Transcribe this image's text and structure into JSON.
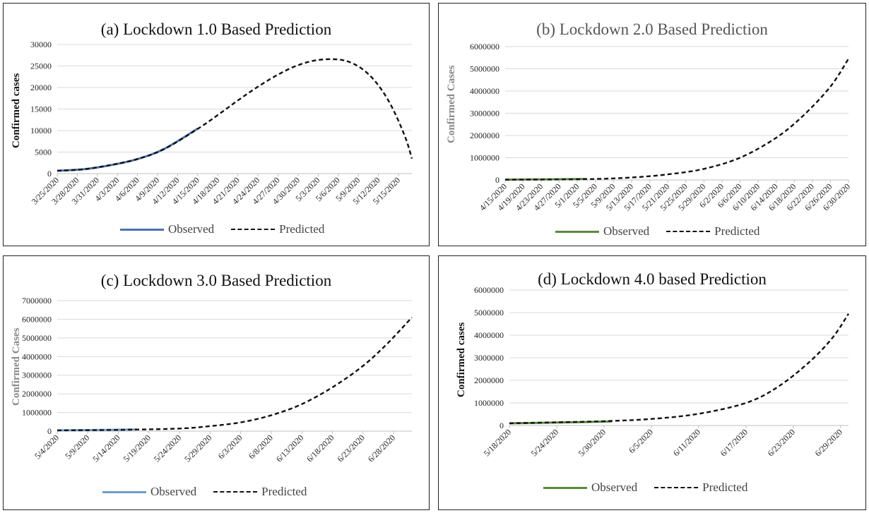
{
  "panels": [
    {
      "title": "(a) Lockdown 1.0 Based Prediction",
      "ylabel": "Confirmed cases",
      "ylabel_color": "#111111",
      "observed_color": "#4a72b0",
      "legend": {
        "observed": "Observed",
        "predicted": "Predicted"
      },
      "chart_data": {
        "type": "line",
        "ylim": [
          0,
          30000
        ],
        "yticks": [
          "0",
          "5000",
          "10000",
          "15000",
          "20000",
          "25000",
          "30000"
        ],
        "ytick_values": [
          0,
          5000,
          10000,
          15000,
          20000,
          25000,
          30000
        ],
        "grid": true,
        "x_count": 54,
        "xtick_labels": [
          "3/25/2020",
          "3/28/2020",
          "3/31/2020",
          "4/3/2020",
          "4/6/2020",
          "4/9/2020",
          "4/12/2020",
          "4/15/2020",
          "4/18/2020",
          "4/21/2020",
          "4/24/2020",
          "4/27/2020",
          "4/30/2020",
          "5/3/2020",
          "5/6/2020",
          "5/9/2020",
          "5/12/2020",
          "5/15/2020"
        ],
        "xtick_step": 3,
        "series": [
          {
            "name": "Observed",
            "style": "solid",
            "x": [
              0,
              4,
              8,
              12,
              16,
              21
            ],
            "y": [
              657,
              1024,
              1965,
              3374,
              5734,
              10453
            ]
          },
          {
            "name": "Predicted",
            "style": "dashed",
            "x": [
              0,
              4,
              8,
              12,
              16,
              21,
              24,
              27,
              30,
              33,
              36,
              39,
              42,
              44,
              46,
              48,
              50,
              52,
              53
            ],
            "y": [
              657,
              1000,
              2000,
              3400,
              5700,
              10400,
              13600,
              17000,
              20200,
              23000,
              25200,
              26400,
              26500,
              25700,
              23800,
              20500,
              15500,
              8500,
              3500
            ]
          }
        ]
      }
    },
    {
      "title": "(b) Lockdown 2.0 Based Prediction",
      "ylabel": "Confirmed Cases",
      "ylabel_color": "#888888",
      "observed_color": "#5a8a3a",
      "legend": {
        "observed": "Observed",
        "predicted": "Predicted"
      },
      "chart_data": {
        "type": "line",
        "ylim": [
          0,
          6000000
        ],
        "yticks": [
          "0",
          "1000000",
          "2000000",
          "3000000",
          "4000000",
          "5000000",
          "6000000"
        ],
        "ytick_values": [
          0,
          1000000,
          2000000,
          3000000,
          4000000,
          5000000,
          6000000
        ],
        "grid": true,
        "x_count": 77,
        "xtick_labels": [
          "4/15/2020",
          "4/19/2020",
          "4/23/2020",
          "4/27/2020",
          "5/1/2020",
          "5/5/2020",
          "5/9/2020",
          "5/13/2020",
          "5/17/2020",
          "5/21/2020",
          "5/25/2020",
          "5/29/2020",
          "6/2/2020",
          "6/6/2020",
          "6/10/2020",
          "6/14/2020",
          "6/18/2020",
          "6/22/2020",
          "6/26/2020",
          "6/30/2020"
        ],
        "xtick_step": 4,
        "series": [
          {
            "name": "Observed",
            "style": "solid",
            "x": [
              0,
              10,
              18
            ],
            "y": [
              12000,
              30000,
              46000
            ]
          },
          {
            "name": "Predicted",
            "style": "dashed",
            "x": [
              0,
              10,
              20,
              28,
              36,
              44,
              52,
              60,
              66,
              72,
              76
            ],
            "y": [
              12000,
              20000,
              45000,
              110000,
              250000,
              500000,
              1000000,
              1900000,
              2900000,
              4200000,
              5450000
            ]
          }
        ]
      }
    },
    {
      "title": "(c) Lockdown 3.0 Based Prediction",
      "ylabel": "Confirmed Cases",
      "ylabel_color": "#888888",
      "observed_color": "#6d9cc8",
      "legend": {
        "observed": "Observed",
        "predicted": "Predicted"
      },
      "chart_data": {
        "type": "line",
        "ylim": [
          0,
          7000000
        ],
        "yticks": [
          "0",
          "1000000",
          "2000000",
          "3000000",
          "4000000",
          "5000000",
          "6000000",
          "7000000"
        ],
        "ytick_values": [
          0,
          1000000,
          2000000,
          3000000,
          4000000,
          5000000,
          6000000,
          7000000
        ],
        "grid": true,
        "x_count": 59,
        "xtick_labels": [
          "5/4/2020",
          "5/9/2020",
          "5/14/2020",
          "5/19/2020",
          "5/24/2020",
          "5/29/2020",
          "6/3/2020",
          "6/8/2020",
          "6/13/2020",
          "6/18/2020",
          "6/23/2020",
          "6/28/2020"
        ],
        "xtick_step": 5,
        "series": [
          {
            "name": "Observed",
            "style": "solid",
            "x": [
              0,
              6,
              13
            ],
            "y": [
              42000,
              62000,
              90000
            ]
          },
          {
            "name": "Predicted",
            "style": "dashed",
            "x": [
              0,
              10,
              20,
              25,
              30,
              35,
              40,
              45,
              50,
              54,
              58
            ],
            "y": [
              42000,
              70000,
              140000,
              270000,
              470000,
              850000,
              1450000,
              2350000,
              3500000,
              4700000,
              6100000
            ]
          }
        ]
      }
    },
    {
      "title": "(d) Lockdown 4.0 based  Prediction",
      "ylabel": "Confirmed cases",
      "ylabel_color": "#111111",
      "observed_color": "#5a8a3a",
      "legend": {
        "observed": "Observed",
        "predicted": "Predicted"
      },
      "chart_data": {
        "type": "line",
        "ylim": [
          0,
          6000000
        ],
        "yticks": [
          "0",
          "1000000",
          "2000000",
          "3000000",
          "4000000",
          "5000000",
          "6000000"
        ],
        "ytick_values": [
          0,
          1000000,
          2000000,
          3000000,
          4000000,
          5000000,
          6000000
        ],
        "grid": true,
        "x_count": 44,
        "xtick_labels": [
          "5/18/2020",
          "5/24/2020",
          "5/30/2020",
          "6/5/2020",
          "6/11/2020",
          "6/17/2020",
          "6/23/2020",
          "6/29/2020"
        ],
        "xtick_step": 6,
        "series": [
          {
            "name": "Observed",
            "style": "solid",
            "x": [
              0,
              6,
              13
            ],
            "y": [
              96000,
              130000,
              182000
            ]
          },
          {
            "name": "Predicted",
            "style": "dashed",
            "x": [
              0,
              6,
              12,
              18,
              24,
              30,
              34,
              38,
              41,
              43
            ],
            "y": [
              96000,
              140000,
              190000,
              290000,
              520000,
              1000000,
              1700000,
              2800000,
              3900000,
              4950000
            ]
          }
        ]
      }
    }
  ]
}
